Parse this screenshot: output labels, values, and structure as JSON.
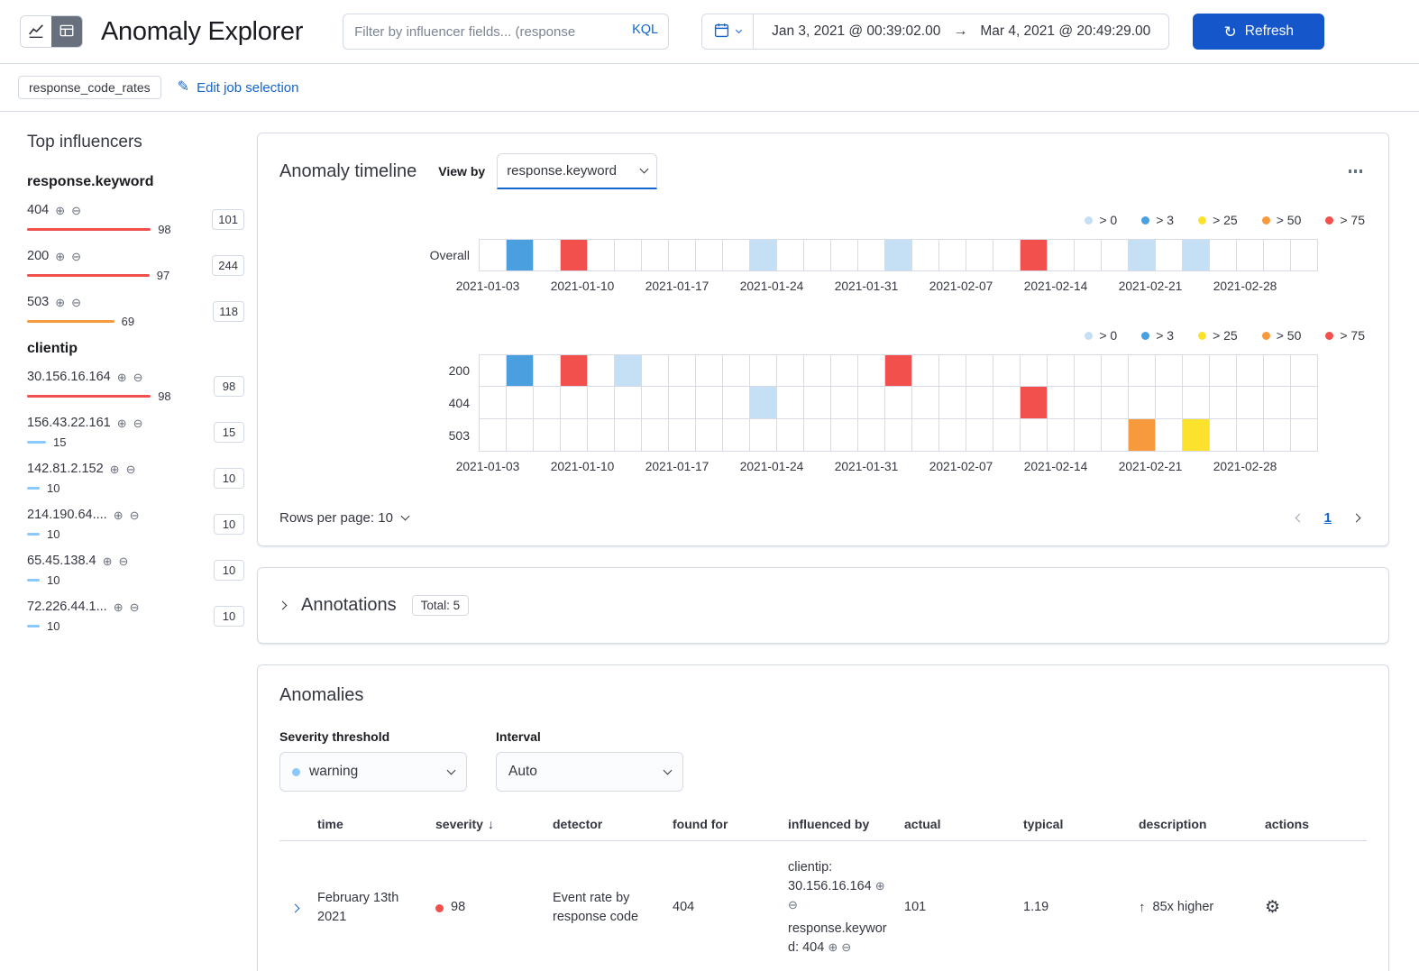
{
  "colors": {
    "primary": "#1556CB",
    "link": "#1365CE",
    "sev0": "#C5E0F4",
    "sev3": "#4AA0DF",
    "sev25": "#FCE22C",
    "sev50": "#F79A3E",
    "sev75": "#F1504D",
    "warn": "#8BC8FB"
  },
  "header": {
    "title": "Anomaly Explorer",
    "filter_placeholder": "Filter by influencer fields... (response",
    "kql_label": "KQL",
    "date_start": "Jan 3, 2021 @ 00:39:02.00",
    "date_end": "Mar 4, 2021 @ 20:49:29.00",
    "refresh_label": "Refresh"
  },
  "jobs_bar": {
    "job_badge": "response_code_rates",
    "edit_link": "Edit job selection"
  },
  "influencers": {
    "title": "Top influencers",
    "groups": [
      {
        "field": "response.keyword",
        "items": [
          {
            "label": "404",
            "score": 98,
            "count": "101",
            "sev": "sev75"
          },
          {
            "label": "200",
            "score": 97,
            "count": "244",
            "sev": "sev75"
          },
          {
            "label": "503",
            "score": 69,
            "count": "118",
            "sev": "sev50"
          }
        ]
      },
      {
        "field": "clientip",
        "items": [
          {
            "label": "30.156.16.164",
            "score": 98,
            "count": "98",
            "sev": "sev75"
          },
          {
            "label": "156.43.22.161",
            "score": 15,
            "count": "15",
            "sev": "warn"
          },
          {
            "label": "142.81.2.152",
            "score": 10,
            "count": "10",
            "sev": "warn"
          },
          {
            "label": "214.190.64....",
            "score": 10,
            "count": "10",
            "sev": "warn"
          },
          {
            "label": "65.45.138.4",
            "score": 10,
            "count": "10",
            "sev": "warn"
          },
          {
            "label": "72.226.44.1...",
            "score": 10,
            "count": "10",
            "sev": "warn"
          }
        ]
      }
    ]
  },
  "timeline": {
    "title": "Anomaly timeline",
    "view_by_label": "View by",
    "view_by_value": "response.keyword",
    "legend": [
      {
        "label": "> 0",
        "sev": "sev0"
      },
      {
        "label": "> 3",
        "sev": "sev3"
      },
      {
        "label": "> 25",
        "sev": "sev25"
      },
      {
        "label": "> 50",
        "sev": "sev50"
      },
      {
        "label": "> 75",
        "sev": "sev75"
      }
    ],
    "n_cells": 31,
    "ticks": [
      "2021-01-03",
      "2021-01-10",
      "2021-01-17",
      "2021-01-24",
      "2021-01-31",
      "2021-02-07",
      "2021-02-14",
      "2021-02-21",
      "2021-02-28"
    ],
    "overall": {
      "label": "Overall",
      "marks": [
        {
          "i": 1,
          "sev": "sev3"
        },
        {
          "i": 3,
          "sev": "sev75"
        },
        {
          "i": 10,
          "sev": "sev0"
        },
        {
          "i": 15,
          "sev": "sev0"
        },
        {
          "i": 20,
          "sev": "sev75"
        },
        {
          "i": 24,
          "sev": "sev0"
        },
        {
          "i": 26,
          "sev": "sev0"
        }
      ]
    },
    "lanes": [
      {
        "label": "200",
        "marks": [
          {
            "i": 1,
            "sev": "sev3"
          },
          {
            "i": 3,
            "sev": "sev75"
          },
          {
            "i": 5,
            "sev": "sev0"
          },
          {
            "i": 15,
            "sev": "sev75"
          }
        ]
      },
      {
        "label": "404",
        "marks": [
          {
            "i": 10,
            "sev": "sev0"
          },
          {
            "i": 20,
            "sev": "sev75"
          }
        ]
      },
      {
        "label": "503",
        "marks": [
          {
            "i": 24,
            "sev": "sev50"
          },
          {
            "i": 26,
            "sev": "sev25"
          }
        ]
      }
    ],
    "rows_per_page_label": "Rows per page: 10",
    "page": "1"
  },
  "annotations": {
    "title": "Annotations",
    "total_badge": "Total: 5"
  },
  "anomalies": {
    "title": "Anomalies",
    "severity_threshold_label": "Severity threshold",
    "severity_value": "warning",
    "interval_label": "Interval",
    "interval_value": "Auto",
    "table": {
      "columns": [
        "time",
        "severity",
        "detector",
        "found for",
        "influenced by",
        "actual",
        "typical",
        "description",
        "actions"
      ],
      "rows": [
        {
          "time": "February 13th 2021",
          "severity": "98",
          "severity_sev": "sev75",
          "detector": "Event rate by response code",
          "found_for": "404",
          "influenced_by": [
            {
              "field": "clientip",
              "value": "30.156.16.164"
            },
            {
              "field": "response.keyword",
              "value": "404"
            }
          ],
          "actual": "101",
          "typical": "1.19",
          "description": "85x higher"
        }
      ]
    }
  }
}
